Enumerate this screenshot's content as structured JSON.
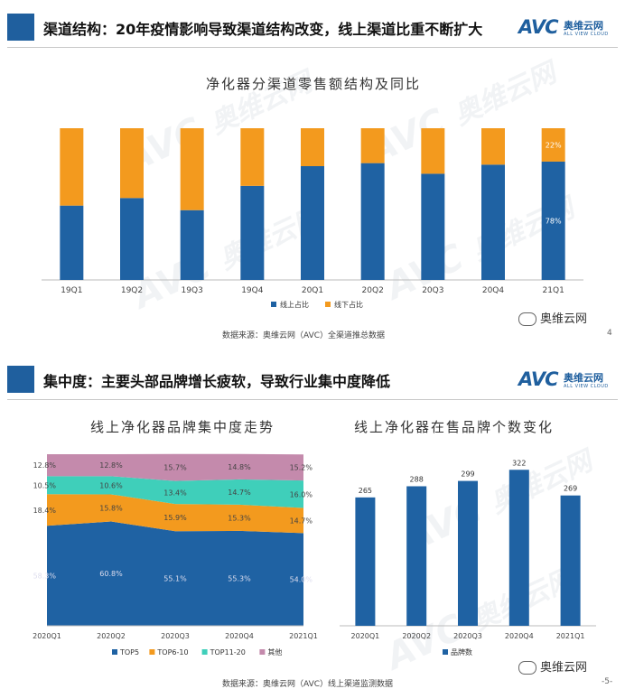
{
  "logo": {
    "brand": "AVC",
    "name_cn": "奥维云网",
    "name_en": "ALL VIEW CLOUD"
  },
  "watermark": {
    "brand": "AVC",
    "name_cn": "奥维云网",
    "name_en": "ALL VIEW CLOUD"
  },
  "slide1": {
    "title": "渠道结构：20年疫情影响导致渠道结构改变，线上渠道比重不断扩大",
    "source": "数据来源：奥维云网（AVC）全渠道推总数据",
    "wechat": "奥维云网",
    "page_mark": "4"
  },
  "slide2": {
    "title": "集中度：主要头部品牌增长疲软，导致行业集中度降低",
    "source": "数据来源：奥维云网（AVC）线上渠道监测数据",
    "wechat": "奥维云网",
    "page_mark": "-5-"
  },
  "colors": {
    "blue": "#1f62a3",
    "orange": "#f39a1e",
    "teal": "#3fcfba",
    "mauve": "#c48aac",
    "header_blue": "#1f5f9e"
  },
  "chart_data": [
    {
      "type": "bar",
      "stacked": true,
      "percent": true,
      "title": "净化器分渠道零售额结构及同比",
      "categories": [
        "19Q1",
        "19Q2",
        "19Q3",
        "19Q4",
        "20Q1",
        "20Q2",
        "20Q3",
        "20Q4",
        "21Q1"
      ],
      "series": [
        {
          "name": "线上占比",
          "values": [
            49,
            54,
            46,
            62,
            75,
            77,
            70,
            76,
            78
          ],
          "labels": [
            "",
            "",
            "",
            "",
            "",
            "",
            "",
            "",
            "78%"
          ]
        },
        {
          "name": "线下占比",
          "values": [
            51,
            46,
            54,
            38,
            25,
            23,
            30,
            24,
            22
          ],
          "labels": [
            "",
            "",
            "",
            "",
            "",
            "",
            "",
            "",
            "22%"
          ]
        }
      ],
      "ylim": [
        0,
        100
      ],
      "legend": "bottom"
    },
    {
      "type": "area",
      "stacked": true,
      "title": "线上净化器品牌集中度走势",
      "categories": [
        "2020Q1",
        "2020Q2",
        "2020Q3",
        "2020Q4",
        "2021Q1"
      ],
      "series": [
        {
          "name": "TOP5",
          "values": [
            58.3,
            60.8,
            55.1,
            55.3,
            54.0
          ],
          "labels": [
            "58.3%",
            "60.8%",
            "55.1%",
            "55.3%",
            "54.0%"
          ]
        },
        {
          "name": "TOP6-10",
          "values": [
            18.4,
            15.8,
            15.9,
            15.3,
            14.7
          ],
          "labels": [
            "18.4%",
            "15.8%",
            "15.9%",
            "15.3%",
            "14.7%"
          ]
        },
        {
          "name": "TOP11-20",
          "values": [
            10.5,
            10.6,
            13.4,
            14.7,
            16.0
          ],
          "labels": [
            "10.5%",
            "10.6%",
            "13.4%",
            "14.7%",
            "16.0%"
          ]
        },
        {
          "name": "其他",
          "values": [
            12.8,
            12.8,
            15.7,
            14.8,
            15.2
          ],
          "labels": [
            "12.8%",
            "12.8%",
            "15.7%",
            "14.8%",
            "15.2%"
          ]
        }
      ],
      "ylim": [
        0,
        100
      ],
      "legend": "bottom"
    },
    {
      "type": "bar",
      "title": "线上净化器在售品牌个数变化",
      "categories": [
        "2020Q1",
        "2020Q2",
        "2020Q3",
        "2020Q4",
        "2021Q1"
      ],
      "series": [
        {
          "name": "品牌数",
          "values": [
            265,
            288,
            299,
            322,
            269
          ]
        }
      ],
      "ylim": [
        0,
        340
      ],
      "legend": "bottom"
    }
  ]
}
